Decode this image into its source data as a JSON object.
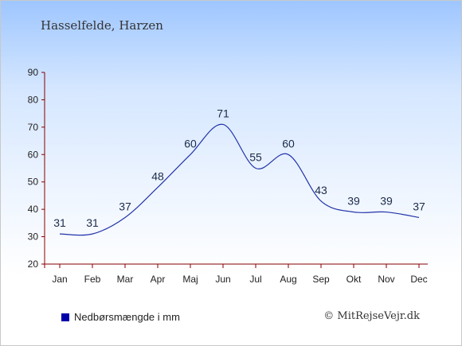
{
  "title": "Hasselfelde, Harzen",
  "legend": {
    "label": "Nedbørsmængde i mm",
    "color": "#0000aa"
  },
  "credit": "© MitRejseVejr.dk",
  "colors": {
    "line": "#2233aa",
    "axis": "#880000",
    "labels": "#1a2a4a"
  },
  "chart_data": {
    "type": "line",
    "categories": [
      "Jan",
      "Feb",
      "Mar",
      "Apr",
      "Maj",
      "Jun",
      "Jul",
      "Aug",
      "Sep",
      "Okt",
      "Nov",
      "Dec"
    ],
    "series": [
      {
        "name": "Nedbørsmængde i mm",
        "values": [
          31,
          31,
          37,
          48,
          60,
          71,
          55,
          60,
          43,
          39,
          39,
          37
        ]
      }
    ],
    "ylim": [
      20,
      90
    ],
    "yticks": [
      20,
      30,
      40,
      50,
      60,
      70,
      80,
      90
    ],
    "grid": false,
    "legend_position": "bottom-left"
  }
}
